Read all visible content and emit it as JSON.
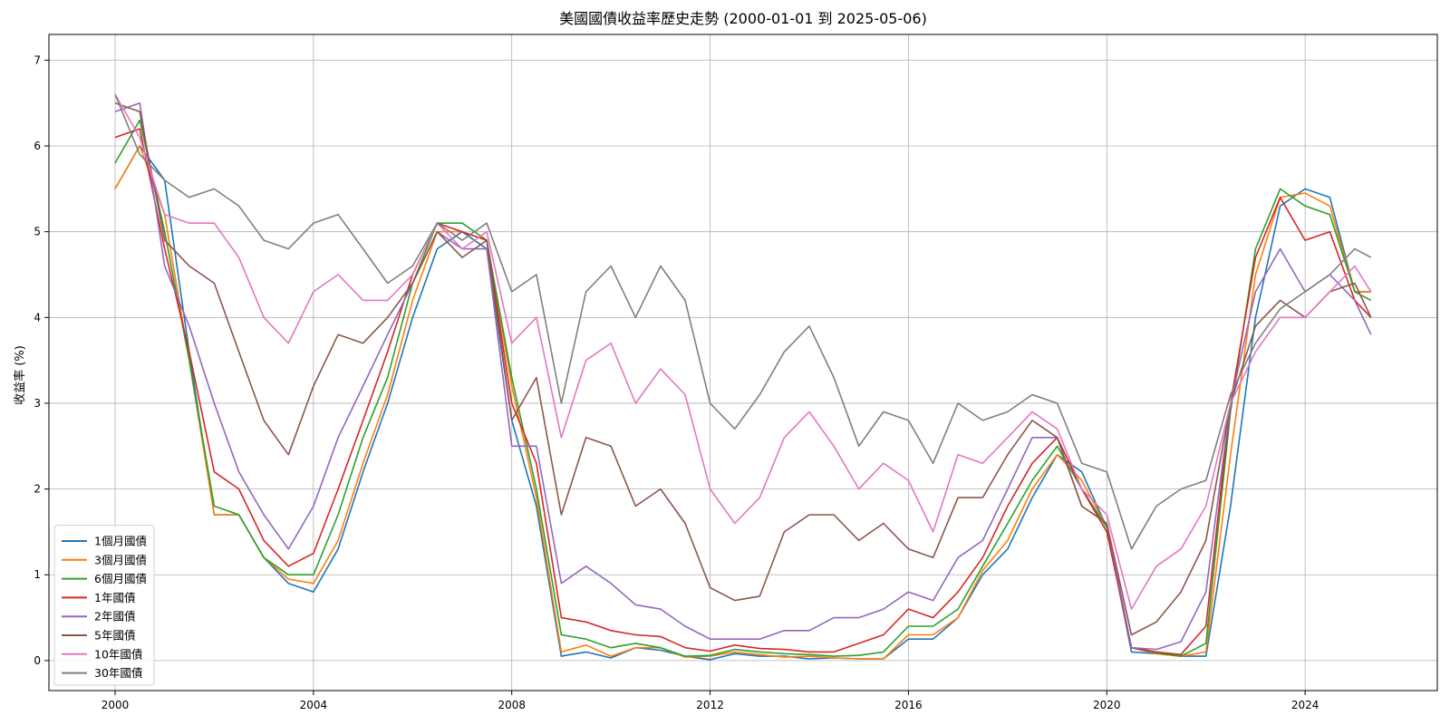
{
  "chart_data": {
    "type": "line",
    "title": "美國國債收益率歷史走勢 (2000-01-01 到 2025-05-06)",
    "xlabel": "",
    "ylabel": "收益率 (%)",
    "xlim": [
      "1998-09-01",
      "2026-09-01"
    ],
    "ylim": [
      -0.35,
      7.3
    ],
    "x_ticks": [
      "2000",
      "2004",
      "2008",
      "2012",
      "2016",
      "2020",
      "2024"
    ],
    "y_ticks": [
      "0",
      "1",
      "2",
      "3",
      "4",
      "5",
      "6",
      "7"
    ],
    "grid": true,
    "legend_position": "lower-left",
    "x": [
      "2000-01",
      "2000-07",
      "2001-01",
      "2001-07",
      "2002-01",
      "2002-07",
      "2003-01",
      "2003-07",
      "2004-01",
      "2004-07",
      "2005-01",
      "2005-07",
      "2006-01",
      "2006-07",
      "2007-01",
      "2007-07",
      "2008-01",
      "2008-07",
      "2009-01",
      "2009-07",
      "2010-01",
      "2010-07",
      "2011-01",
      "2011-07",
      "2012-01",
      "2012-07",
      "2013-01",
      "2013-07",
      "2014-01",
      "2014-07",
      "2015-01",
      "2015-07",
      "2016-01",
      "2016-07",
      "2017-01",
      "2017-07",
      "2018-01",
      "2018-07",
      "2019-01",
      "2019-07",
      "2020-01",
      "2020-07",
      "2021-01",
      "2021-07",
      "2022-01",
      "2022-07",
      "2023-01",
      "2023-07",
      "2024-01",
      "2024-07",
      "2025-01",
      "2025-05"
    ],
    "series": [
      {
        "name": "1個月國債",
        "color": "#1f77b4",
        "values": [
          5.5,
          6.0,
          5.6,
          3.6,
          1.7,
          1.7,
          1.2,
          0.9,
          0.8,
          1.3,
          2.2,
          3.0,
          4.0,
          4.8,
          5.0,
          4.8,
          2.8,
          1.8,
          0.05,
          0.1,
          0.03,
          0.15,
          0.12,
          0.05,
          0.01,
          0.08,
          0.05,
          0.05,
          0.02,
          0.03,
          0.02,
          0.02,
          0.25,
          0.25,
          0.5,
          1.0,
          1.3,
          1.9,
          2.4,
          2.2,
          1.55,
          0.1,
          0.08,
          0.05,
          0.05,
          1.8,
          4.0,
          5.3,
          5.5,
          5.4,
          4.3,
          4.3
        ]
      },
      {
        "name": "3個月國債",
        "color": "#ff7f0e",
        "values": [
          5.5,
          6.0,
          5.2,
          3.5,
          1.7,
          1.7,
          1.2,
          0.95,
          0.9,
          1.4,
          2.3,
          3.1,
          4.2,
          5.0,
          5.0,
          4.9,
          3.2,
          1.9,
          0.1,
          0.18,
          0.05,
          0.15,
          0.15,
          0.04,
          0.05,
          0.1,
          0.07,
          0.04,
          0.05,
          0.03,
          0.02,
          0.02,
          0.3,
          0.3,
          0.5,
          1.05,
          1.4,
          2.0,
          2.4,
          2.1,
          1.55,
          0.15,
          0.08,
          0.05,
          0.1,
          2.4,
          4.5,
          5.4,
          5.45,
          5.3,
          4.3,
          4.3
        ]
      },
      {
        "name": "6個月國債",
        "color": "#2ca02c",
        "values": [
          5.8,
          6.3,
          5.0,
          3.5,
          1.8,
          1.7,
          1.2,
          1.0,
          1.0,
          1.7,
          2.6,
          3.3,
          4.4,
          5.1,
          5.1,
          4.9,
          3.3,
          2.0,
          0.3,
          0.25,
          0.15,
          0.2,
          0.15,
          0.05,
          0.06,
          0.13,
          0.1,
          0.08,
          0.07,
          0.05,
          0.06,
          0.1,
          0.4,
          0.4,
          0.6,
          1.1,
          1.6,
          2.1,
          2.5,
          2.0,
          1.55,
          0.15,
          0.09,
          0.05,
          0.2,
          2.9,
          4.8,
          5.5,
          5.3,
          5.2,
          4.3,
          4.2
        ]
      },
      {
        "name": "1年國債",
        "color": "#d62728",
        "values": [
          6.1,
          6.2,
          4.8,
          3.6,
          2.2,
          2.0,
          1.4,
          1.1,
          1.25,
          2.0,
          2.8,
          3.6,
          4.5,
          5.1,
          5.0,
          4.9,
          3.0,
          2.3,
          0.5,
          0.45,
          0.35,
          0.3,
          0.28,
          0.15,
          0.11,
          0.18,
          0.14,
          0.13,
          0.1,
          0.1,
          0.2,
          0.3,
          0.6,
          0.5,
          0.8,
          1.2,
          1.8,
          2.3,
          2.6,
          2.0,
          1.5,
          0.15,
          0.1,
          0.07,
          0.4,
          3.0,
          4.7,
          5.4,
          4.9,
          5.0,
          4.2,
          4.0
        ]
      },
      {
        "name": "2年國債",
        "color": "#9467bd",
        "values": [
          6.4,
          6.5,
          4.6,
          3.9,
          3.0,
          2.2,
          1.7,
          1.3,
          1.8,
          2.6,
          3.2,
          3.8,
          4.4,
          5.0,
          4.8,
          4.8,
          2.5,
          2.5,
          0.9,
          1.1,
          0.9,
          0.65,
          0.6,
          0.4,
          0.25,
          0.25,
          0.25,
          0.35,
          0.35,
          0.5,
          0.5,
          0.6,
          0.8,
          0.7,
          1.2,
          1.4,
          2.0,
          2.6,
          2.6,
          1.8,
          1.6,
          0.15,
          0.13,
          0.22,
          0.8,
          3.0,
          4.3,
          4.8,
          4.3,
          4.5,
          4.2,
          3.8
        ]
      },
      {
        "name": "5年國債",
        "color": "#8c564b",
        "values": [
          6.5,
          6.4,
          4.9,
          4.6,
          4.4,
          3.6,
          2.8,
          2.4,
          3.2,
          3.8,
          3.7,
          4.0,
          4.4,
          5.0,
          4.7,
          4.9,
          2.8,
          3.3,
          1.7,
          2.6,
          2.5,
          1.8,
          2.0,
          1.6,
          0.85,
          0.7,
          0.75,
          1.5,
          1.7,
          1.7,
          1.4,
          1.6,
          1.3,
          1.2,
          1.9,
          1.9,
          2.4,
          2.8,
          2.6,
          1.8,
          1.6,
          0.3,
          0.45,
          0.8,
          1.4,
          3.0,
          3.9,
          4.2,
          4.0,
          4.3,
          4.4,
          4.0
        ]
      },
      {
        "name": "10年國債",
        "color": "#e377c2",
        "values": [
          6.6,
          6.1,
          5.2,
          5.1,
          5.1,
          4.7,
          4.0,
          3.7,
          4.3,
          4.5,
          4.2,
          4.2,
          4.5,
          5.1,
          4.8,
          5.0,
          3.7,
          4.0,
          2.6,
          3.5,
          3.7,
          3.0,
          3.4,
          3.1,
          2.0,
          1.6,
          1.9,
          2.6,
          2.9,
          2.5,
          2.0,
          2.3,
          2.1,
          1.5,
          2.4,
          2.3,
          2.6,
          2.9,
          2.7,
          2.0,
          1.7,
          0.6,
          1.1,
          1.3,
          1.8,
          3.0,
          3.6,
          4.0,
          4.0,
          4.3,
          4.6,
          4.3
        ]
      },
      {
        "name": "30年國債",
        "color": "#7f7f7f",
        "values": [
          6.6,
          5.9,
          5.6,
          5.4,
          5.5,
          5.3,
          4.9,
          4.8,
          5.1,
          5.2,
          4.8,
          4.4,
          4.6,
          5.1,
          4.9,
          5.1,
          4.3,
          4.5,
          3.0,
          4.3,
          4.6,
          4.0,
          4.6,
          4.2,
          3.0,
          2.7,
          3.1,
          3.6,
          3.9,
          3.3,
          2.5,
          2.9,
          2.8,
          2.3,
          3.0,
          2.8,
          2.9,
          3.1,
          3.0,
          2.3,
          2.2,
          1.3,
          1.8,
          2.0,
          2.1,
          3.1,
          3.7,
          4.1,
          4.3,
          4.5,
          4.8,
          4.7
        ]
      }
    ]
  }
}
